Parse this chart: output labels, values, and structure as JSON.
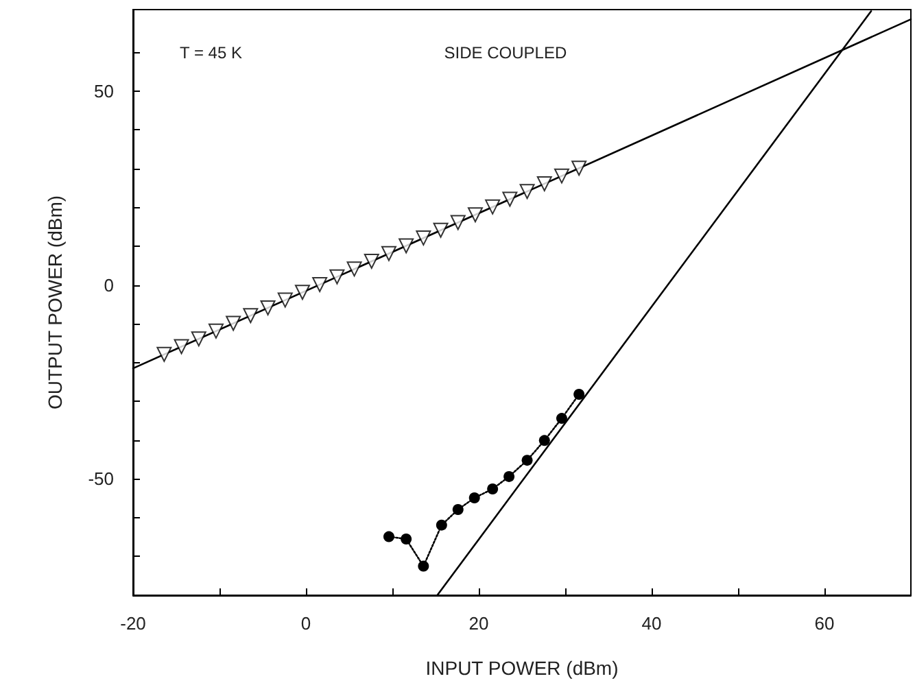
{
  "chart_data": {
    "type": "line",
    "xlabel": "INPUT POWER (dBm)",
    "ylabel": "OUTPUT POWER (dBm)",
    "annotations": [
      "T = 45 K",
      "SIDE COUPLED"
    ],
    "xlim": [
      -20,
      70
    ],
    "ylim": [
      -80,
      71
    ],
    "xticks": [
      -20,
      {
        "value": -10,
        "label": null
      },
      0,
      {
        "value": 10,
        "label": null
      },
      20,
      {
        "value": 30,
        "label": null
      },
      40,
      {
        "value": 50,
        "label": null
      },
      60
    ],
    "yticks": [
      {
        "value": -70,
        "label": null
      },
      {
        "value": -60,
        "label": null
      },
      -50,
      {
        "value": -40,
        "label": null
      },
      {
        "value": -30,
        "label": null
      },
      {
        "value": -20,
        "label": null
      },
      {
        "value": -10,
        "label": null
      },
      0,
      {
        "value": 10,
        "label": null
      },
      {
        "value": 20,
        "label": null
      },
      {
        "value": 30,
        "label": null
      },
      {
        "value": 40,
        "label": null
      },
      50,
      {
        "value": 60,
        "label": null
      }
    ],
    "grid": false,
    "series": [
      {
        "type": "scatter",
        "marker": "triangle",
        "color": "#000000",
        "x": [
          -16.4,
          -14.4,
          -12.4,
          -10.4,
          -8.4,
          -6.4,
          -4.4,
          -2.4,
          -0.4,
          1.6,
          3.6,
          5.6,
          7.6,
          9.6,
          11.6,
          13.6,
          15.6,
          17.6,
          19.6,
          21.6,
          23.6,
          25.6,
          27.6,
          29.6,
          31.6
        ],
        "values": [
          -17.9,
          -15.9,
          -13.9,
          -11.9,
          -9.9,
          -7.9,
          -5.9,
          -3.9,
          -1.9,
          0.1,
          2.1,
          4.1,
          6.1,
          8.1,
          10.1,
          12.1,
          14.1,
          16.1,
          18.1,
          20.1,
          22.1,
          24.1,
          26.1,
          28.1,
          30.1
        ]
      },
      {
        "type": "line",
        "marker": "none",
        "line_style": "solid",
        "color": "#000000",
        "x": [
          -20,
          70
        ],
        "values": [
          -21.5,
          68.5
        ]
      },
      {
        "type": "line",
        "marker": "none",
        "line_style": "solid",
        "color": "#000000",
        "x": [
          15.2,
          65.4
        ],
        "values": [
          -80,
          70.6
        ]
      },
      {
        "type": "line",
        "marker": "circle",
        "line_style": "dotted",
        "color": "#000000",
        "x": [
          9.6,
          11.6,
          13.6,
          15.7,
          17.6,
          19.5,
          21.6,
          23.5,
          25.6,
          27.6,
          29.6,
          31.6
        ],
        "values": [
          -64.9,
          -65.5,
          -72.5,
          -61.9,
          -57.9,
          -54.9,
          -52.6,
          -49.4,
          -45.2,
          -40.1,
          -34.4,
          -28.2
        ]
      }
    ]
  }
}
